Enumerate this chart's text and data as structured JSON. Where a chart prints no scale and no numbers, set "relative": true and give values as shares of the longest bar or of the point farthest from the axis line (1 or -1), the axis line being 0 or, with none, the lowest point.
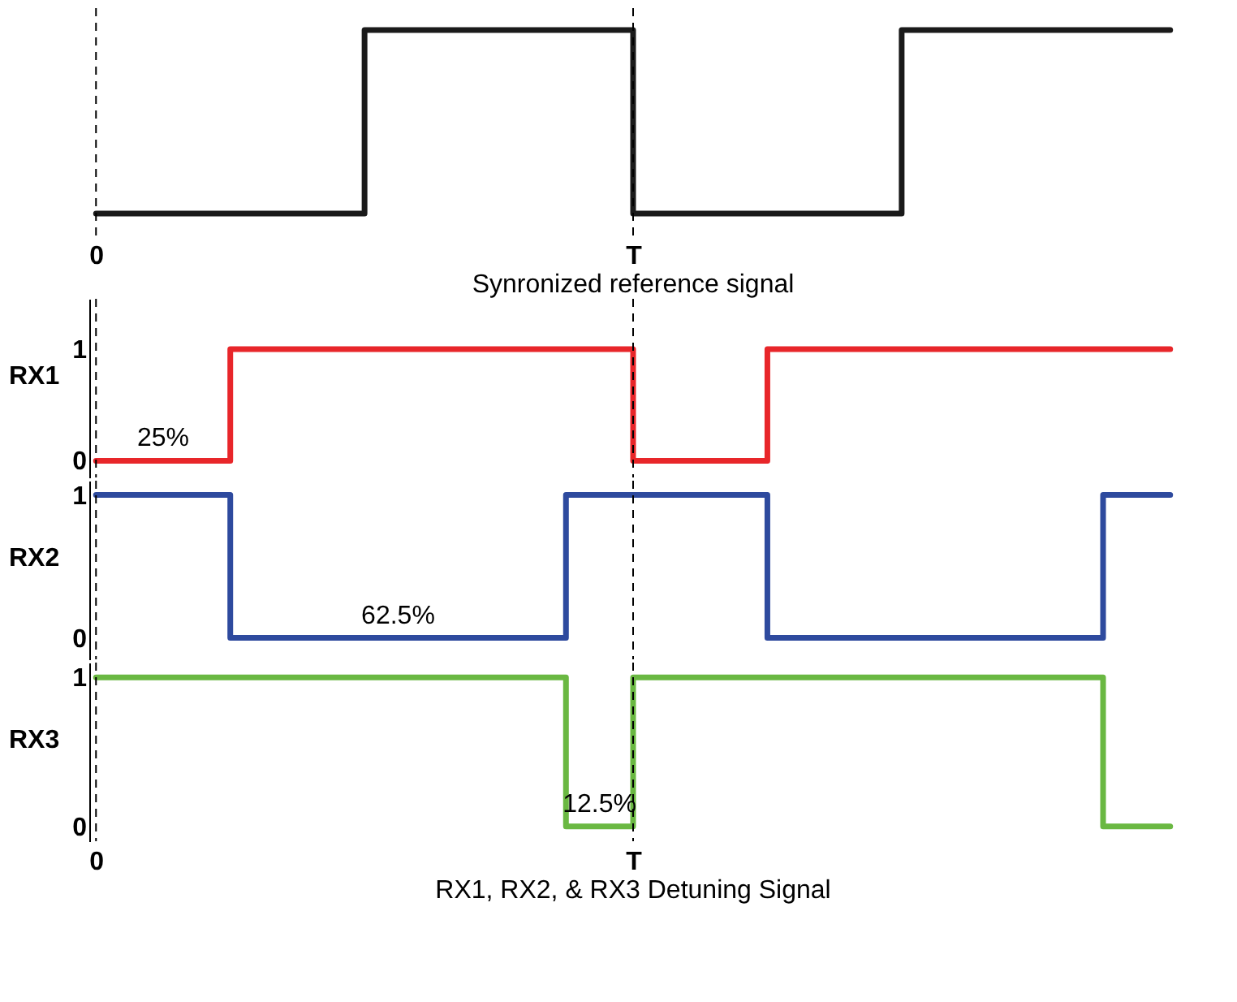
{
  "chart_data": [
    {
      "type": "step",
      "title": "Synronized reference signal",
      "relative": true,
      "categories": [
        "0",
        null,
        null,
        null,
        null,
        null,
        null,
        null,
        "T",
        null,
        null,
        null,
        null,
        null,
        null,
        null,
        null
      ],
      "series": [
        {
          "color": "#1a1a1a",
          "values": [
            0,
            0,
            0,
            0,
            1,
            1,
            1,
            1,
            0,
            0,
            0,
            0,
            1,
            1,
            1,
            1,
            1
          ]
        }
      ],
      "tick_labels": "x",
      "grid": false,
      "ref_lines": [
        {
          "axis": "x",
          "value": "0",
          "line_style": "dashed"
        },
        {
          "axis": "x",
          "value": "T",
          "line_style": "dashed"
        }
      ]
    },
    {
      "type": "step",
      "ylabel": "RX1",
      "categories": [
        "0",
        null,
        null,
        null,
        null,
        null,
        null,
        null,
        "T",
        null,
        null,
        null,
        null,
        null,
        null,
        null,
        null
      ],
      "series": [
        {
          "color": "#e8262a",
          "values": [
            0,
            0,
            1,
            1,
            1,
            1,
            1,
            1,
            0,
            0,
            1,
            1,
            1,
            1,
            1,
            1,
            1
          ]
        }
      ],
      "ylim": [
        -0.15,
        1.45
      ],
      "yticks": [
        0,
        1
      ],
      "tick_labels": "y",
      "grid": false,
      "annotations": [
        "25%"
      ],
      "ref_lines": [
        {
          "axis": "x",
          "value": "0",
          "line_style": "dashed"
        },
        {
          "axis": "x",
          "value": "T",
          "line_style": "dashed"
        }
      ]
    },
    {
      "type": "step",
      "ylabel": "RX2",
      "categories": [
        "0",
        null,
        null,
        null,
        null,
        null,
        null,
        null,
        "T",
        null,
        null,
        null,
        null,
        null,
        null,
        null,
        null
      ],
      "series": [
        {
          "color": "#2e4a9e",
          "values": [
            1,
            1,
            0,
            0,
            0,
            0,
            0,
            1,
            1,
            1,
            0,
            0,
            0,
            0,
            0,
            1,
            1
          ]
        }
      ],
      "ylim": [
        -0.15,
        1.1
      ],
      "yticks": [
        0,
        1
      ],
      "tick_labels": "y",
      "grid": false,
      "annotations": [
        "62.5%"
      ],
      "ref_lines": [
        {
          "axis": "x",
          "value": "0",
          "line_style": "dashed"
        },
        {
          "axis": "x",
          "value": "T",
          "line_style": "dashed"
        }
      ]
    },
    {
      "type": "step",
      "title": "RX1, RX2, & RX3 Detuning Signal",
      "ylabel": "RX3",
      "categories": [
        "0",
        null,
        null,
        null,
        null,
        null,
        null,
        null,
        "T",
        null,
        null,
        null,
        null,
        null,
        null,
        null,
        null
      ],
      "series": [
        {
          "color": "#6ab842",
          "values": [
            1,
            1,
            1,
            1,
            1,
            1,
            1,
            0,
            1,
            1,
            1,
            1,
            1,
            1,
            1,
            0,
            0
          ]
        }
      ],
      "ylim": [
        -0.1,
        1.1
      ],
      "yticks": [
        0,
        1
      ],
      "grid": false,
      "annotations": [
        "12.5%"
      ],
      "ref_lines": [
        {
          "axis": "x",
          "value": "0",
          "line_style": "dashed"
        },
        {
          "axis": "x",
          "value": "T",
          "line_style": "dashed"
        }
      ]
    }
  ]
}
